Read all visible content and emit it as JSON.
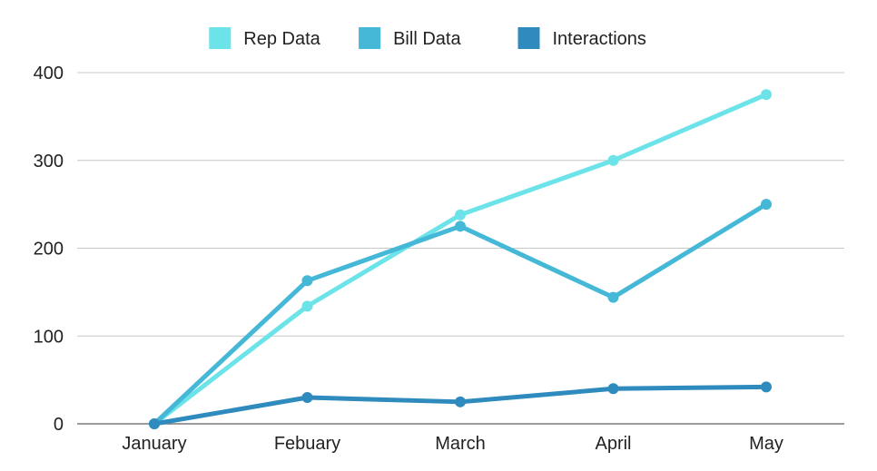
{
  "chart_data": {
    "type": "line",
    "title": "",
    "xlabel": "",
    "ylabel": "",
    "categories": [
      "January",
      "Febuary",
      "March",
      "April",
      "May"
    ],
    "ylim": [
      0,
      400
    ],
    "yticks": [
      0,
      100,
      200,
      300,
      400
    ],
    "grid": "horizontal",
    "legend_position": "top-center",
    "series": [
      {
        "name": "Rep Data",
        "color": "#6be3e8",
        "values": [
          0,
          134,
          238,
          300,
          375
        ]
      },
      {
        "name": "Bill Data",
        "color": "#44b8d6",
        "values": [
          0,
          163,
          225,
          144,
          250
        ]
      },
      {
        "name": "Interactions",
        "color": "#2f8bbd",
        "values": [
          0,
          30,
          25,
          40,
          42
        ]
      }
    ]
  }
}
